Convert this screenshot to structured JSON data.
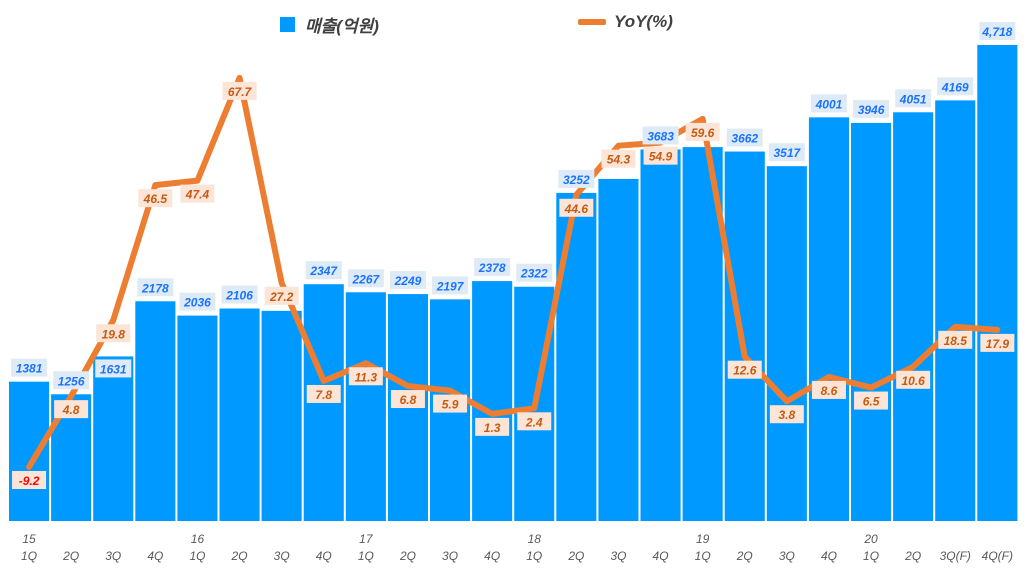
{
  "chart_data": {
    "type": "bar+line",
    "categories": [
      "15 1Q",
      "2Q",
      "3Q",
      "4Q",
      "16 1Q",
      "2Q",
      "3Q",
      "4Q",
      "17 1Q",
      "2Q",
      "3Q",
      "4Q",
      "18 1Q",
      "2Q",
      "3Q",
      "4Q",
      "19 1Q",
      "2Q",
      "3Q",
      "4Q",
      "20 1Q",
      "2Q",
      "3Q(F)",
      "4Q(F)"
    ],
    "year_labels": [
      "15",
      "",
      "",
      "",
      "16",
      "",
      "",
      "",
      "17",
      "",
      "",
      "",
      "18",
      "",
      "",
      "",
      "19",
      "",
      "",
      "",
      "20",
      "",
      "",
      ""
    ],
    "quarter_labels": [
      "1Q",
      "2Q",
      "3Q",
      "4Q",
      "1Q",
      "2Q",
      "3Q",
      "4Q",
      "1Q",
      "2Q",
      "3Q",
      "4Q",
      "1Q",
      "2Q",
      "3Q",
      "4Q",
      "1Q",
      "2Q",
      "3Q",
      "4Q",
      "1Q",
      "2Q",
      "3Q(F)",
      "4Q(F)"
    ],
    "series": [
      {
        "name": "매출(억원)",
        "type": "bar",
        "color": "#0099ff",
        "values": [
          1381,
          1256,
          1631,
          2178,
          2036,
          2106,
          2083,
          2347,
          2267,
          2249,
          2197,
          2378,
          2322,
          3252,
          3390,
          3683,
          3706,
          3662,
          3517,
          4001,
          3946,
          4051,
          4169,
          4718
        ],
        "labels": [
          "1381",
          "1256",
          "1631",
          "2178",
          "2036",
          "2106",
          "",
          "2347",
          "2267",
          "2249",
          "2197",
          "2378",
          "2322",
          "3252",
          "",
          "3683",
          "",
          "3662",
          "3517",
          "4001",
          "3946",
          "4051",
          "4169",
          "4,718"
        ]
      },
      {
        "name": "YoY(%)",
        "type": "line",
        "color": "#ed7d31",
        "values": [
          -9.2,
          4.8,
          19.8,
          46.5,
          47.4,
          67.7,
          27.2,
          7.8,
          11.3,
          6.8,
          5.9,
          1.3,
          2.4,
          44.6,
          54.3,
          54.9,
          59.6,
          12.6,
          3.8,
          8.6,
          6.5,
          10.6,
          18.5,
          17.9
        ]
      }
    ],
    "legend": "top",
    "grid": false
  }
}
